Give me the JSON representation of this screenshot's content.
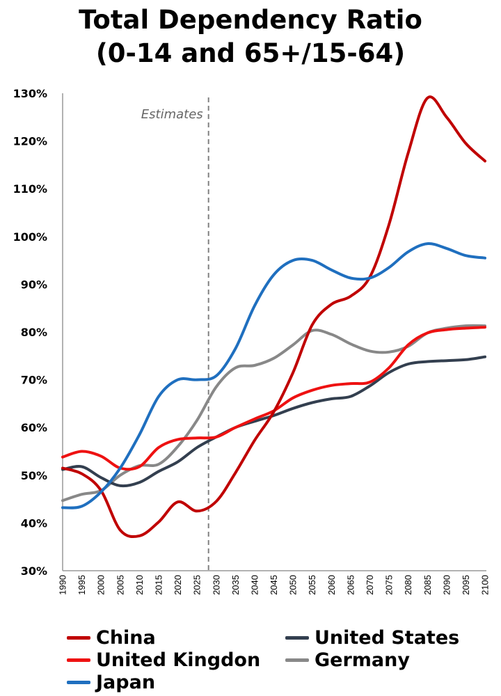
{
  "chart_data": {
    "type": "line",
    "title": "Total Dependency Ratio",
    "subtitle": "(0-14 and 65+/15-64)",
    "xlabel": "",
    "ylabel": "",
    "xlim": [
      1990,
      2100
    ],
    "ylim": [
      30,
      130
    ],
    "x_ticks": [
      1990,
      1995,
      2000,
      2005,
      2010,
      2015,
      2020,
      2025,
      2030,
      2035,
      2040,
      2045,
      2050,
      2055,
      2060,
      2065,
      2070,
      2075,
      2080,
      2085,
      2090,
      2095,
      2100
    ],
    "y_ticks": [
      30,
      40,
      50,
      60,
      70,
      80,
      90,
      100,
      110,
      120,
      130
    ],
    "y_tick_labels": [
      "30%",
      "40%",
      "50%",
      "60%",
      "70%",
      "80%",
      "90%",
      "100%",
      "110%",
      "120%",
      "130%"
    ],
    "grid": false,
    "legend_position": "bottom",
    "annotation": {
      "label": "Estimates",
      "x": 2028
    },
    "x": [
      1990,
      1995,
      2000,
      2005,
      2010,
      2015,
      2020,
      2025,
      2030,
      2035,
      2040,
      2045,
      2050,
      2055,
      2060,
      2065,
      2070,
      2075,
      2080,
      2085,
      2090,
      2095,
      2100
    ],
    "series": [
      {
        "name": "China",
        "color": "#c00000",
        "values": [
          51.5,
          50.3,
          46.8,
          38.5,
          37.3,
          40.2,
          44.4,
          42.5,
          44.5,
          50.5,
          57.3,
          63.3,
          71.5,
          81.5,
          85.8,
          87.5,
          91.5,
          102.5,
          117.5,
          129.0,
          125.0,
          119.5,
          115.8
        ]
      },
      {
        "name": "United States",
        "color": "#333f4f",
        "values": [
          51.2,
          51.8,
          49.5,
          47.8,
          48.5,
          50.8,
          52.8,
          55.8,
          58.0,
          60.0,
          61.3,
          62.5,
          64.0,
          65.2,
          66.0,
          66.5,
          68.7,
          71.5,
          73.3,
          73.8,
          74.0,
          74.2,
          74.8
        ]
      },
      {
        "name": "United Kingdon",
        "color": "#ee1111",
        "values": [
          53.8,
          55.0,
          54.0,
          51.5,
          51.8,
          55.8,
          57.5,
          57.8,
          58.0,
          60.0,
          61.8,
          63.5,
          66.2,
          67.8,
          68.8,
          69.2,
          69.5,
          72.5,
          77.3,
          79.8,
          80.5,
          80.8,
          81.0
        ]
      },
      {
        "name": "Germany",
        "color": "#888888",
        "values": [
          44.7,
          46.0,
          46.8,
          50.0,
          52.0,
          52.3,
          56.0,
          61.5,
          68.5,
          72.5,
          73.0,
          74.5,
          77.3,
          80.3,
          79.5,
          77.5,
          76.0,
          75.8,
          77.0,
          79.8,
          80.8,
          81.3,
          81.3
        ]
      },
      {
        "name": "Japan",
        "color": "#1f6fbf",
        "values": [
          43.2,
          43.5,
          46.5,
          51.5,
          58.5,
          66.5,
          70.0,
          70.0,
          70.8,
          76.5,
          85.5,
          92.0,
          95.0,
          95.0,
          93.0,
          91.3,
          91.3,
          93.5,
          96.8,
          98.5,
          97.5,
          96.0,
          95.5
        ]
      }
    ]
  },
  "legend": {
    "items": [
      {
        "label": "China",
        "color": "#c00000"
      },
      {
        "label": "United States",
        "color": "#333f4f"
      },
      {
        "label": "United Kingdon",
        "color": "#ee1111"
      },
      {
        "label": "Germany",
        "color": "#888888"
      },
      {
        "label": "Japan",
        "color": "#1f6fbf"
      }
    ]
  }
}
